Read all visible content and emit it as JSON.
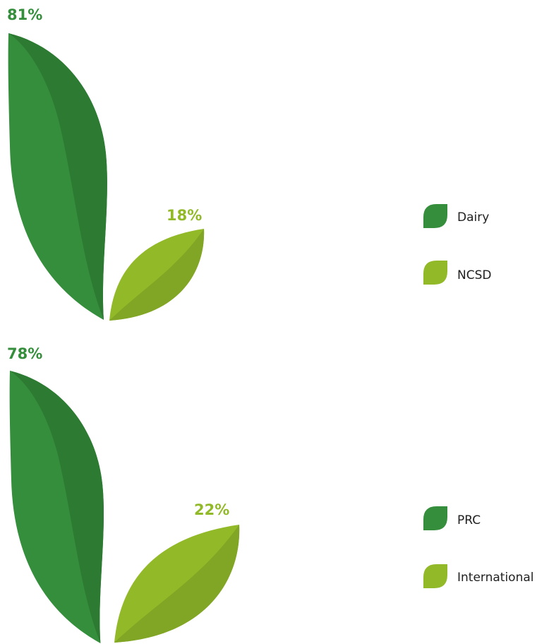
{
  "colors": {
    "primary": "#358e3c",
    "primary_shade": "#2d7a33",
    "secondary": "#92b928",
    "secondary_shade": "#81a524"
  },
  "chart_data": [
    {
      "type": "leaf-proportion",
      "title": "",
      "categories": [
        "Dairy",
        "NCSD"
      ],
      "values": [
        81,
        18
      ],
      "value_labels": [
        "81%",
        "18%"
      ],
      "unit": "%",
      "legend": [
        {
          "label": "Dairy",
          "color": "#358e3c"
        },
        {
          "label": "NCSD",
          "color": "#92b928"
        }
      ],
      "legend_position": "right"
    },
    {
      "type": "leaf-proportion",
      "title": "",
      "categories": [
        "PRC",
        "International"
      ],
      "values": [
        78,
        22
      ],
      "value_labels": [
        "78%",
        "22%"
      ],
      "unit": "%",
      "legend": [
        {
          "label": "PRC",
          "color": "#358e3c"
        },
        {
          "label": "International",
          "color": "#92b928"
        }
      ],
      "legend_position": "right"
    }
  ]
}
